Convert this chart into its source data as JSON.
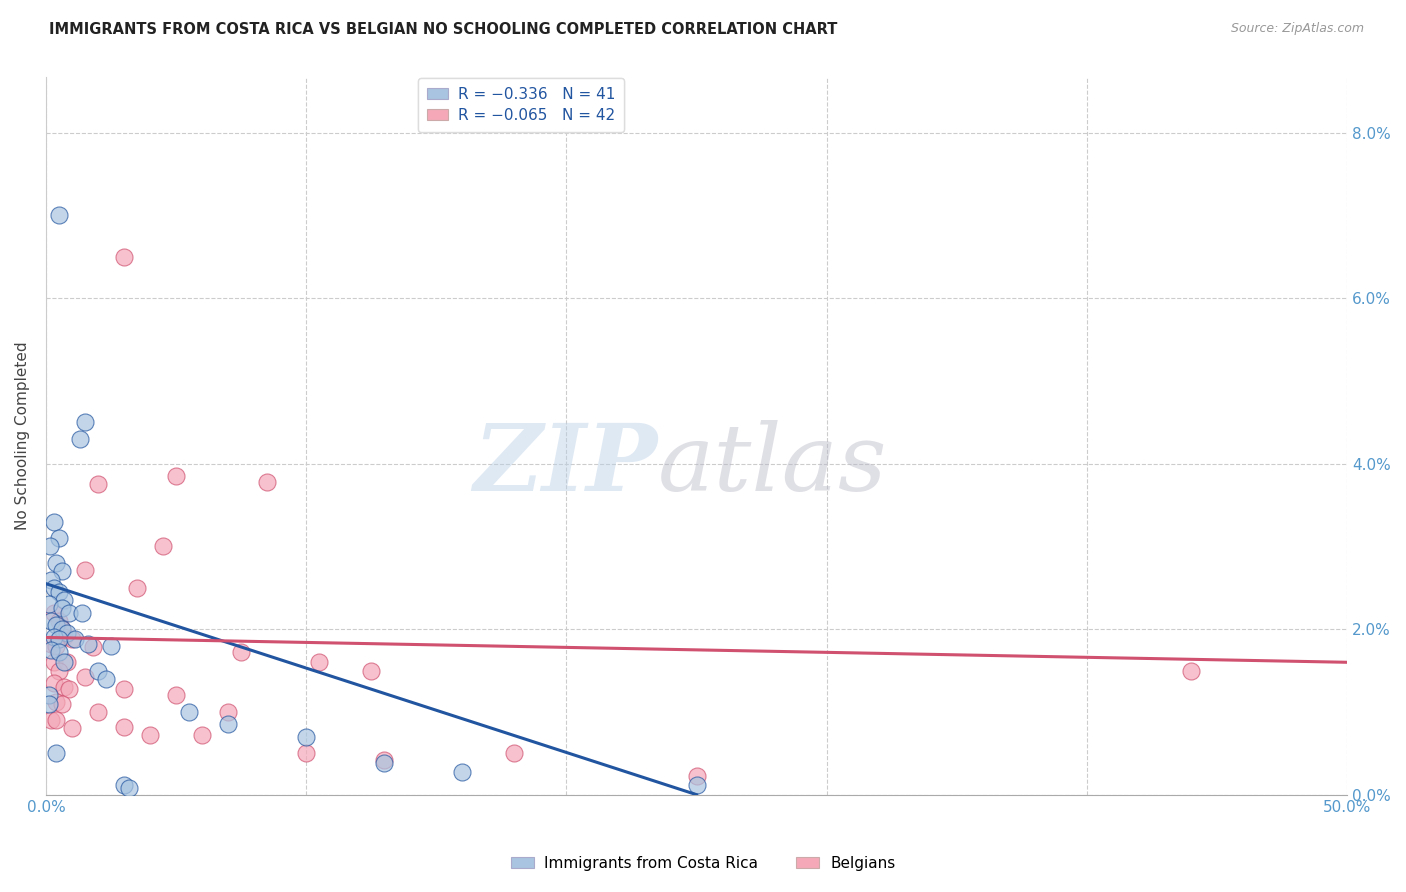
{
  "title": "IMMIGRANTS FROM COSTA RICA VS BELGIAN NO SCHOOLING COMPLETED CORRELATION CHART",
  "source": "Source: ZipAtlas.com",
  "ylabel": "No Schooling Completed",
  "legend_entry1": "R = −0.336   N = 41",
  "legend_entry2": "R = −0.065   N = 42",
  "legend_label1": "Immigrants from Costa Rica",
  "legend_label2": "Belgians",
  "color_blue": "#a8c4e0",
  "color_pink": "#f4a8b8",
  "line_blue": "#2255a0",
  "line_pink": "#d05070",
  "blue_points": [
    [
      0.5,
      7.0
    ],
    [
      1.5,
      4.5
    ],
    [
      1.3,
      4.3
    ],
    [
      0.3,
      3.3
    ],
    [
      0.5,
      3.1
    ],
    [
      0.15,
      3.0
    ],
    [
      0.4,
      2.8
    ],
    [
      0.6,
      2.7
    ],
    [
      0.2,
      2.6
    ],
    [
      0.3,
      2.5
    ],
    [
      0.5,
      2.45
    ],
    [
      0.7,
      2.35
    ],
    [
      0.1,
      2.3
    ],
    [
      0.6,
      2.25
    ],
    [
      0.9,
      2.2
    ],
    [
      1.4,
      2.2
    ],
    [
      0.2,
      2.1
    ],
    [
      0.4,
      2.05
    ],
    [
      0.6,
      2.0
    ],
    [
      0.8,
      1.95
    ],
    [
      0.3,
      1.9
    ],
    [
      0.5,
      1.88
    ],
    [
      1.1,
      1.88
    ],
    [
      1.6,
      1.82
    ],
    [
      0.2,
      1.75
    ],
    [
      0.5,
      1.72
    ],
    [
      0.7,
      1.6
    ],
    [
      2.5,
      1.8
    ],
    [
      2.0,
      1.5
    ],
    [
      2.3,
      1.4
    ],
    [
      0.1,
      1.2
    ],
    [
      0.1,
      1.1
    ],
    [
      5.5,
      1.0
    ],
    [
      7.0,
      0.85
    ],
    [
      10.0,
      0.7
    ],
    [
      0.4,
      0.5
    ],
    [
      13.0,
      0.38
    ],
    [
      16.0,
      0.28
    ],
    [
      25.0,
      0.12
    ],
    [
      3.0,
      0.12
    ],
    [
      3.2,
      0.08
    ]
  ],
  "pink_points": [
    [
      3.0,
      6.5
    ],
    [
      5.0,
      3.85
    ],
    [
      8.5,
      3.78
    ],
    [
      2.0,
      3.75
    ],
    [
      4.5,
      3.0
    ],
    [
      1.5,
      2.72
    ],
    [
      3.5,
      2.5
    ],
    [
      0.3,
      2.2
    ],
    [
      0.5,
      2.1
    ],
    [
      0.6,
      2.0
    ],
    [
      0.7,
      1.9
    ],
    [
      1.0,
      1.88
    ],
    [
      0.2,
      1.82
    ],
    [
      0.4,
      1.8
    ],
    [
      1.8,
      1.78
    ],
    [
      0.3,
      1.6
    ],
    [
      0.8,
      1.6
    ],
    [
      0.5,
      1.5
    ],
    [
      1.5,
      1.42
    ],
    [
      0.3,
      1.35
    ],
    [
      0.7,
      1.3
    ],
    [
      0.9,
      1.28
    ],
    [
      3.0,
      1.28
    ],
    [
      5.0,
      1.2
    ],
    [
      0.4,
      1.12
    ],
    [
      0.6,
      1.1
    ],
    [
      2.0,
      1.0
    ],
    [
      7.5,
      1.72
    ],
    [
      10.5,
      1.6
    ],
    [
      12.5,
      1.5
    ],
    [
      0.2,
      0.9
    ],
    [
      0.4,
      0.9
    ],
    [
      1.0,
      0.8
    ],
    [
      3.0,
      0.82
    ],
    [
      4.0,
      0.72
    ],
    [
      6.0,
      0.72
    ],
    [
      10.0,
      0.5
    ],
    [
      18.0,
      0.5
    ],
    [
      13.0,
      0.42
    ],
    [
      25.0,
      0.22
    ],
    [
      44.0,
      1.5
    ],
    [
      7.0,
      1.0
    ]
  ],
  "xlim": [
    0,
    50
  ],
  "ylim": [
    0,
    8.667
  ],
  "xticks": [
    0,
    50
  ],
  "xticklabels": [
    "0.0%",
    "50.0%"
  ],
  "xtick_minor": [
    10,
    20,
    30,
    40
  ],
  "ytick_vals": [
    0,
    2,
    4,
    6,
    8
  ],
  "yticklabels_right": [
    "0.0%",
    "2.0%",
    "4.0%",
    "6.0%",
    "8.0%"
  ],
  "blue_line": {
    "x0": 0,
    "y0": 2.55,
    "x1": 25,
    "y1": 0.0
  },
  "pink_line": {
    "x0": 0,
    "y0": 1.9,
    "x1": 50,
    "y1": 1.6
  }
}
